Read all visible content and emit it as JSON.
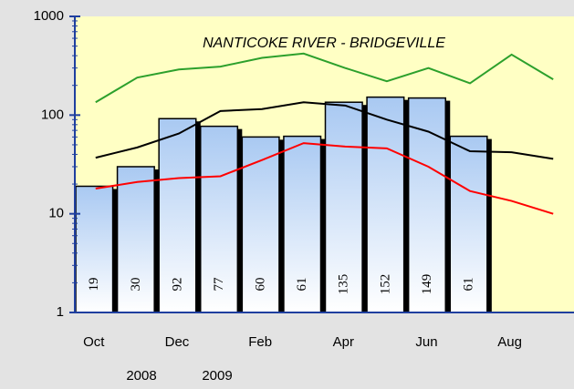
{
  "chart_data": {
    "type": "bar",
    "title": "NANTICOKE RIVER - BRIDGEVILLE",
    "categories": [
      "Oct",
      null,
      "Dec",
      null,
      "Feb",
      null,
      "Apr",
      null,
      "Jun",
      null,
      "Aug",
      null
    ],
    "annotations": [
      "2008",
      "2009"
    ],
    "log_scale": true,
    "ylim": [
      1,
      1000
    ],
    "yticks": [
      1,
      10,
      100,
      1000
    ],
    "series": [
      {
        "type": "bar",
        "color": "#a9c9f2",
        "values": [
          19,
          30,
          92,
          77,
          60,
          61,
          135,
          152,
          149,
          61,
          null,
          null
        ]
      },
      {
        "type": "line",
        "color": "#2ca02c",
        "values": [
          135,
          240,
          290,
          310,
          380,
          420,
          300,
          220,
          300,
          210,
          410,
          230
        ]
      },
      {
        "type": "line",
        "color": "#000000",
        "values": [
          37,
          47,
          65,
          110,
          115,
          135,
          125,
          90,
          68,
          43,
          42,
          36
        ]
      },
      {
        "type": "line",
        "color": "#ff0000",
        "values": [
          18,
          21,
          23,
          24,
          35,
          52,
          48,
          46,
          30,
          17,
          13.5,
          10
        ]
      }
    ]
  }
}
